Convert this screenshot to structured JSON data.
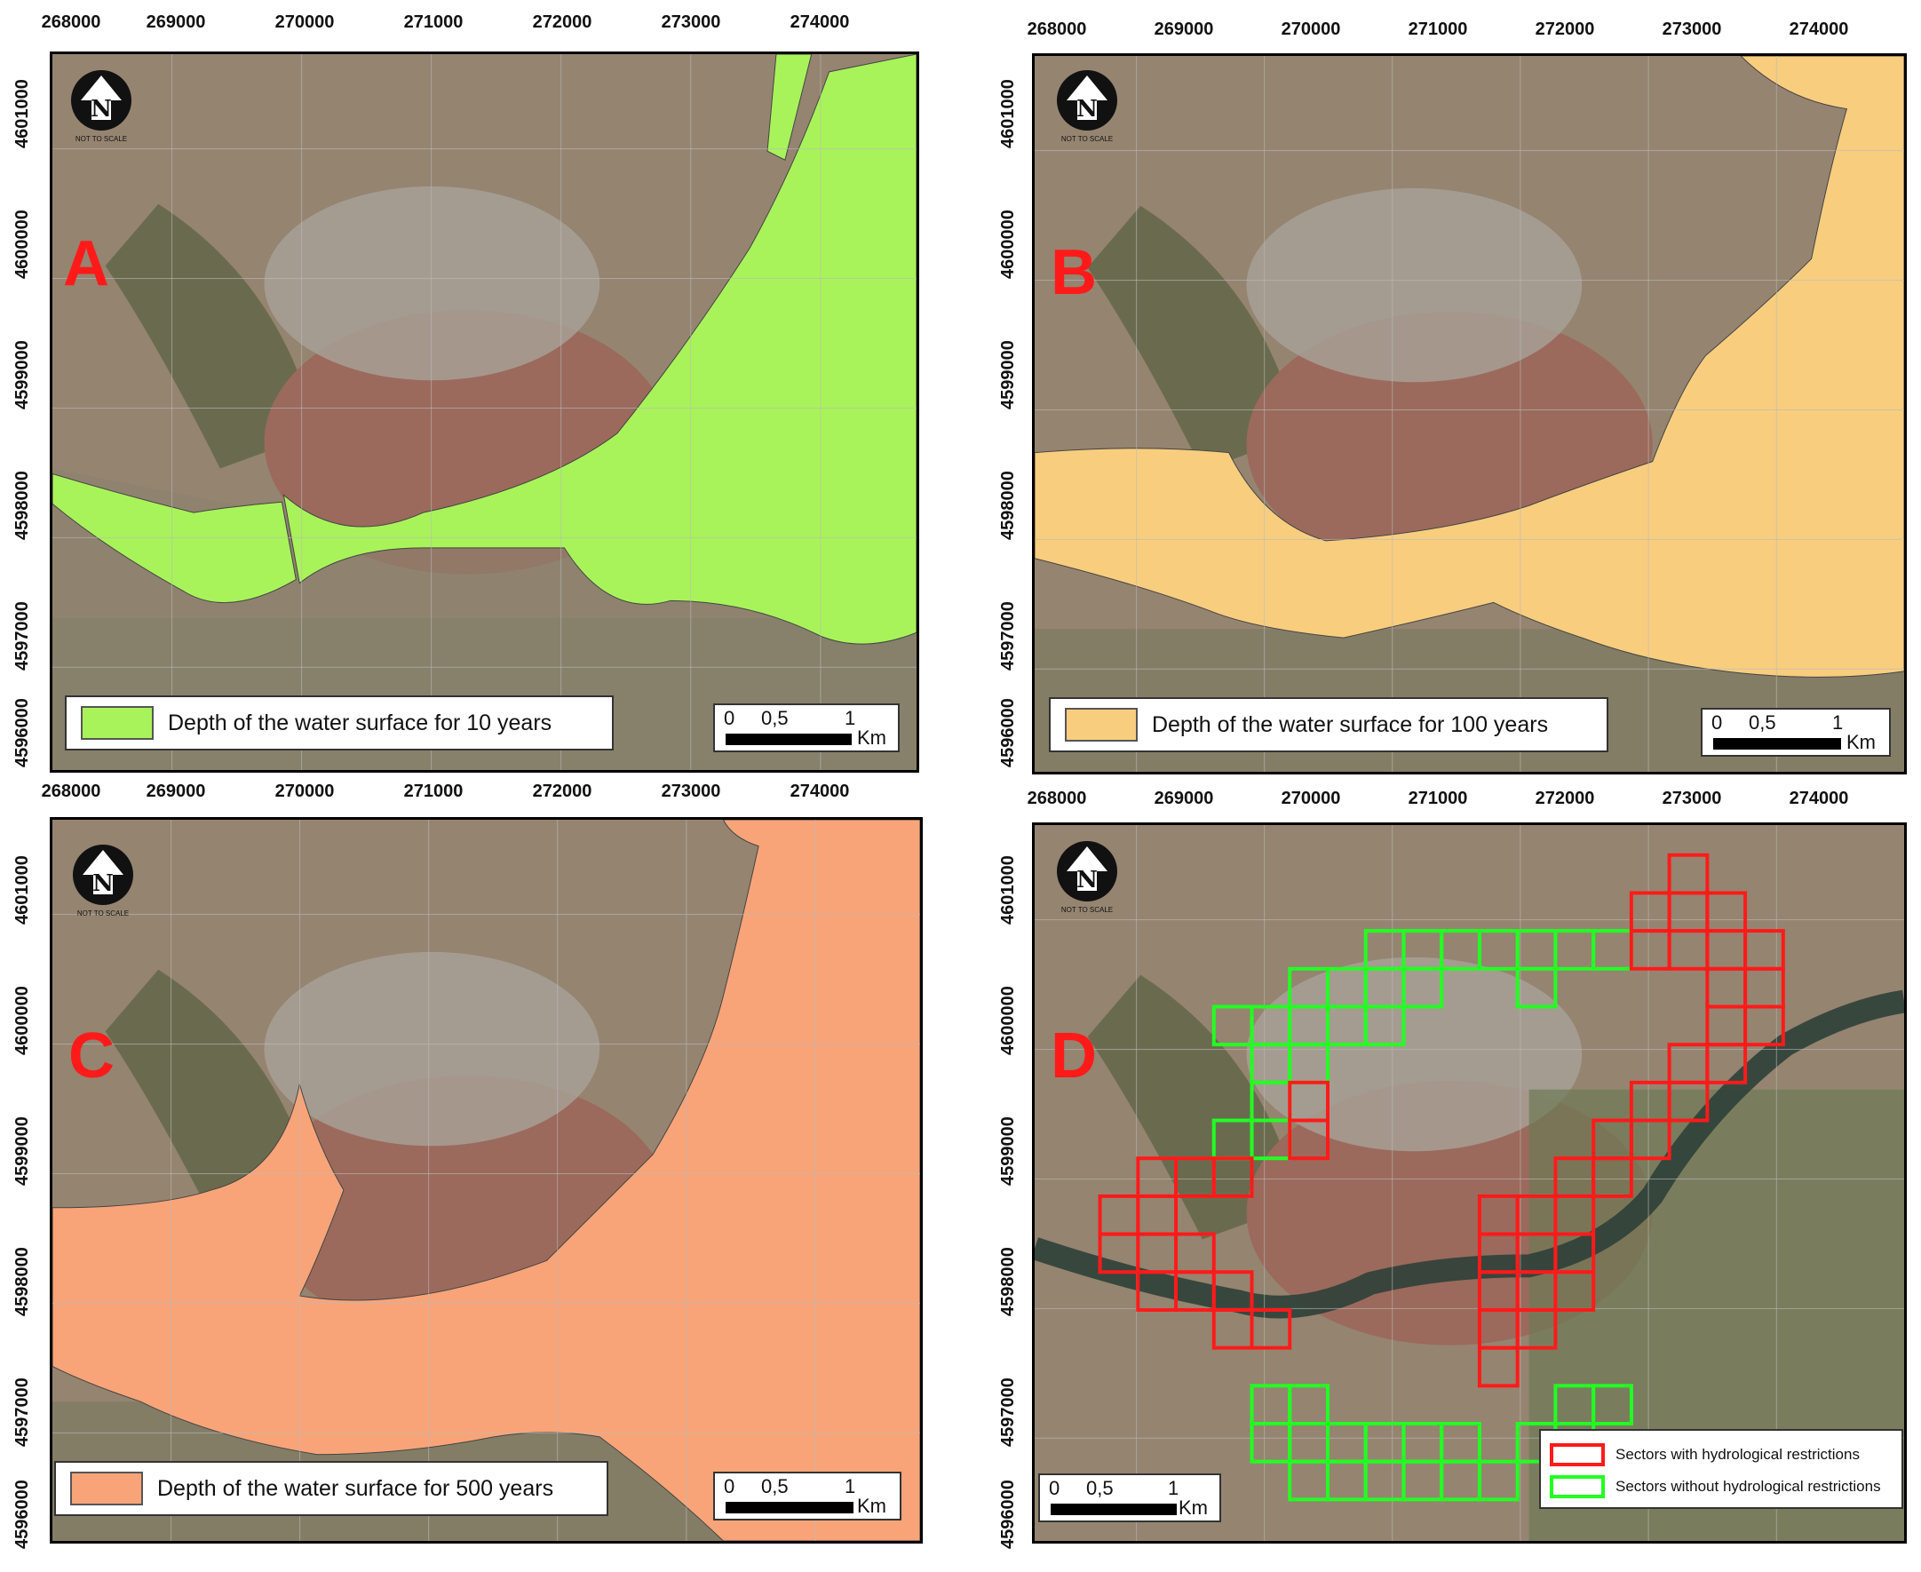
{
  "x_ticks": [
    "268000",
    "269000",
    "270000",
    "271000",
    "272000",
    "273000",
    "274000"
  ],
  "y_ticks": [
    "4601000",
    "4600000",
    "4599000",
    "4598000",
    "4597000",
    "4596000"
  ],
  "north_arrow": {
    "icon": "north-arrow-icon",
    "label": "NOT TO SCALE"
  },
  "scale_bar": {
    "labels": [
      "0",
      "0,5",
      "1"
    ],
    "unit": "Km"
  },
  "colors": {
    "flood_10": "#a8f35a",
    "flood_100": "#f8cd7e",
    "flood_500": "#f8a478",
    "restricted": "#ff1a1a",
    "unrestricted": "#22ff22",
    "letter": "#ff1a1a"
  },
  "panels": {
    "a": {
      "letter": "A",
      "legend": "Depth of the water surface  for 10 years"
    },
    "b": {
      "letter": "B",
      "legend": "Depth of the water surface  for 100 years"
    },
    "c": {
      "letter": "C",
      "legend": "Depth of the water surface  for 500 years"
    },
    "d": {
      "letter": "D",
      "legend_items": [
        "Sectors with hydrological restrictions",
        "Sectors without hydrological restrictions"
      ]
    }
  }
}
